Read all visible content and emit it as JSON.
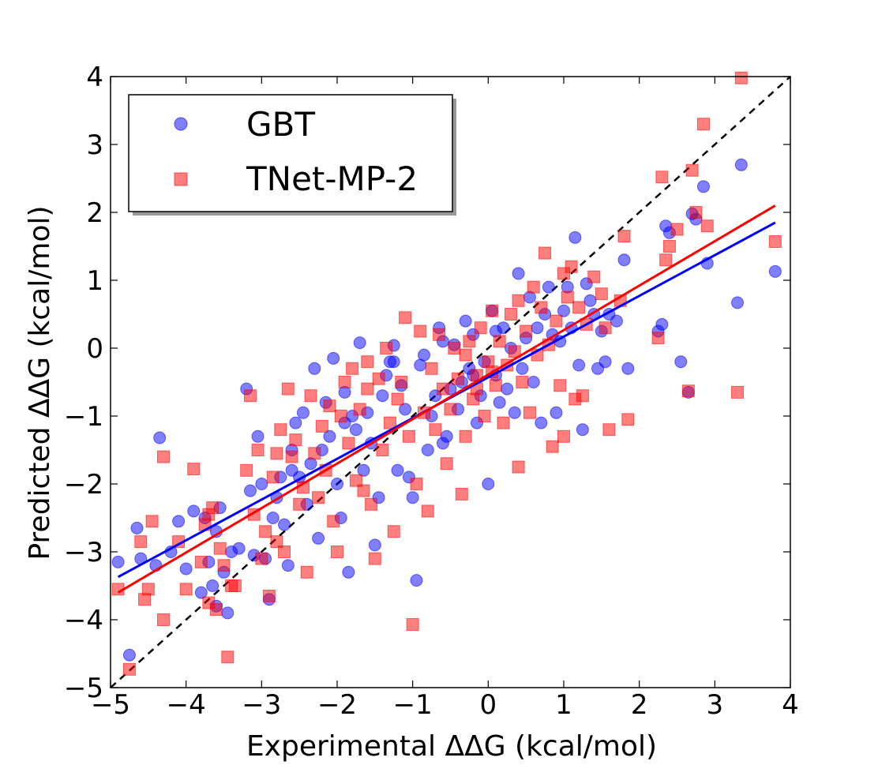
{
  "chart_data": {
    "type": "scatter",
    "title": "",
    "xlabel": "Experimental ΔΔG (kcal/mol)",
    "ylabel": "Predicted ΔΔG (kcal/mol)",
    "xlim": [
      -5,
      4
    ],
    "ylim": [
      -5,
      4
    ],
    "xticks": [
      -5,
      -4,
      -3,
      -2,
      -1,
      0,
      1,
      2,
      3,
      4
    ],
    "yticks": [
      -5,
      -4,
      -3,
      -2,
      -1,
      0,
      1,
      2,
      3,
      4
    ],
    "xtick_labels": [
      "−5",
      "−4",
      "−3",
      "−2",
      "−1",
      "0",
      "1",
      "2",
      "3",
      "4"
    ],
    "ytick_labels": [
      "−5",
      "−4",
      "−3",
      "−2",
      "−1",
      "0",
      "1",
      "2",
      "3",
      "4"
    ],
    "legend_position": "top-left",
    "reference_line": {
      "style": "dashed",
      "color": "#000000",
      "from": [
        -5,
        -5
      ],
      "to": [
        4,
        4
      ]
    },
    "series": [
      {
        "name": "GBT",
        "marker": "circle",
        "color": "#0000ff",
        "alpha": 0.5,
        "fit_line": {
          "from": [
            -4.9,
            -3.37
          ],
          "to": [
            3.8,
            1.85
          ]
        },
        "points": [
          [
            -4.9,
            -3.15
          ],
          [
            -4.75,
            -4.52
          ],
          [
            -4.65,
            -2.65
          ],
          [
            -4.6,
            -3.1
          ],
          [
            -4.4,
            -3.2
          ],
          [
            -4.35,
            -1.32
          ],
          [
            -4.2,
            -3.0
          ],
          [
            -4.1,
            -2.55
          ],
          [
            -4.0,
            -3.25
          ],
          [
            -3.9,
            -2.4
          ],
          [
            -3.8,
            -3.6
          ],
          [
            -3.75,
            -2.5
          ],
          [
            -3.7,
            -3.15
          ],
          [
            -3.65,
            -3.5
          ],
          [
            -3.6,
            -3.8
          ],
          [
            -3.55,
            -2.35
          ],
          [
            -3.5,
            -3.3
          ],
          [
            -3.45,
            -3.9
          ],
          [
            -3.4,
            -3.0
          ],
          [
            -3.3,
            -2.95
          ],
          [
            -3.2,
            -0.6
          ],
          [
            -3.15,
            -2.1
          ],
          [
            -3.1,
            -3.05
          ],
          [
            -3.05,
            -1.3
          ],
          [
            -3.0,
            -2.0
          ],
          [
            -2.95,
            -3.1
          ],
          [
            -2.9,
            -3.7
          ],
          [
            -2.85,
            -2.5
          ],
          [
            -2.8,
            -2.2
          ],
          [
            -2.75,
            -1.9
          ],
          [
            -2.7,
            -2.6
          ],
          [
            -2.65,
            -3.2
          ],
          [
            -2.6,
            -1.5
          ],
          [
            -2.55,
            -1.1
          ],
          [
            -2.5,
            -1.9
          ],
          [
            -2.45,
            -0.95
          ],
          [
            -2.4,
            -2.3
          ],
          [
            -2.35,
            -1.7
          ],
          [
            -2.3,
            -0.3
          ],
          [
            -2.25,
            -2.8
          ],
          [
            -2.2,
            -1.5
          ],
          [
            -2.15,
            -0.8
          ],
          [
            -2.1,
            -1.3
          ],
          [
            -2.05,
            -0.15
          ],
          [
            -2.0,
            -2.0
          ],
          [
            -1.95,
            -2.5
          ],
          [
            -1.9,
            -0.65
          ],
          [
            -1.85,
            -3.3
          ],
          [
            -1.8,
            -1.0
          ],
          [
            -1.75,
            -1.2
          ],
          [
            -1.7,
            0.08
          ],
          [
            -1.65,
            -1.8
          ],
          [
            -1.6,
            -0.95
          ],
          [
            -1.55,
            -1.4
          ],
          [
            -1.5,
            -2.9
          ],
          [
            -1.45,
            -2.2
          ],
          [
            -1.4,
            -0.7
          ],
          [
            -1.35,
            -0.4
          ],
          [
            -1.3,
            -0.2
          ],
          [
            -1.25,
            0.04
          ],
          [
            -1.2,
            -1.8
          ],
          [
            -1.15,
            -0.55
          ],
          [
            -1.1,
            -0.9
          ],
          [
            -1.05,
            -1.9
          ],
          [
            -1.0,
            -2.2
          ],
          [
            -0.95,
            -3.42
          ],
          [
            -0.9,
            -0.25
          ],
          [
            -0.85,
            -0.1
          ],
          [
            -0.8,
            -1.5
          ],
          [
            -0.75,
            -1.0
          ],
          [
            -0.7,
            -0.7
          ],
          [
            -0.65,
            0.3
          ],
          [
            -0.6,
            0.1
          ],
          [
            -0.55,
            -1.3
          ],
          [
            -0.5,
            -0.6
          ],
          [
            -0.45,
            0.05
          ],
          [
            -0.4,
            -0.9
          ],
          [
            -0.35,
            -0.5
          ],
          [
            -0.3,
            0.4
          ],
          [
            -0.25,
            -0.3
          ],
          [
            -0.2,
            0.2
          ],
          [
            -0.15,
            -1.1
          ],
          [
            -0.1,
            -0.7
          ],
          [
            -0.05,
            -0.2
          ],
          [
            0.0,
            -2.0
          ],
          [
            0.05,
            0.55
          ],
          [
            0.1,
            -0.4
          ],
          [
            0.15,
            -0.8
          ],
          [
            0.2,
            0.3
          ],
          [
            0.25,
            -0.6
          ],
          [
            0.3,
            0.0
          ],
          [
            0.35,
            -0.95
          ],
          [
            0.4,
            1.1
          ],
          [
            0.45,
            -0.3
          ],
          [
            0.5,
            0.15
          ],
          [
            0.55,
            0.75
          ],
          [
            0.6,
            -0.5
          ],
          [
            0.65,
            0.3
          ],
          [
            0.7,
            -1.1
          ],
          [
            0.75,
            0.5
          ],
          [
            0.8,
            0.9
          ],
          [
            0.85,
            0.2
          ],
          [
            0.9,
            -0.95
          ],
          [
            0.95,
            0.1
          ],
          [
            1.0,
            0.55
          ],
          [
            1.05,
            0.9
          ],
          [
            1.1,
            0.3
          ],
          [
            1.15,
            1.63
          ],
          [
            1.2,
            -0.25
          ],
          [
            1.25,
            -1.2
          ],
          [
            1.3,
            0.95
          ],
          [
            1.35,
            0.7
          ],
          [
            1.4,
            0.5
          ],
          [
            1.45,
            -0.3
          ],
          [
            1.5,
            0.25
          ],
          [
            1.55,
            -0.2
          ],
          [
            1.6,
            0.5
          ],
          [
            1.7,
            0.4
          ],
          [
            1.8,
            1.3
          ],
          [
            1.85,
            -0.3
          ],
          [
            2.25,
            0.25
          ],
          [
            2.3,
            0.35
          ],
          [
            2.35,
            1.8
          ],
          [
            2.4,
            1.7
          ],
          [
            2.55,
            -0.2
          ],
          [
            2.65,
            -0.65
          ],
          [
            2.7,
            1.98
          ],
          [
            2.75,
            1.9
          ],
          [
            2.85,
            2.38
          ],
          [
            2.9,
            1.25
          ],
          [
            3.3,
            0.67
          ],
          [
            3.35,
            2.7
          ],
          [
            3.8,
            1.13
          ],
          [
            -1.25,
            -0.2
          ],
          [
            -0.6,
            -1.4
          ],
          [
            -0.2,
            -0.4
          ],
          [
            0.1,
            0.25
          ],
          [
            -1.9,
            -1.1
          ],
          [
            -2.6,
            -1.8
          ],
          [
            -3.6,
            -2.7
          ]
        ]
      },
      {
        "name": "TNet-MP-2",
        "marker": "square",
        "color": "#ff0000",
        "alpha": 0.5,
        "fit_line": {
          "from": [
            -4.9,
            -3.6
          ],
          "to": [
            3.8,
            2.1
          ]
        },
        "points": [
          [
            -4.9,
            -3.55
          ],
          [
            -4.75,
            -4.73
          ],
          [
            -4.6,
            -2.85
          ],
          [
            -4.55,
            -3.7
          ],
          [
            -4.5,
            -3.55
          ],
          [
            -4.45,
            -2.55
          ],
          [
            -4.3,
            -4.0
          ],
          [
            -4.3,
            -1.6
          ],
          [
            -4.1,
            -2.85
          ],
          [
            -4.0,
            -3.55
          ],
          [
            -3.9,
            -1.78
          ],
          [
            -3.8,
            -3.15
          ],
          [
            -3.75,
            -2.6
          ],
          [
            -3.7,
            -3.75
          ],
          [
            -3.65,
            -2.35
          ],
          [
            -3.6,
            -3.85
          ],
          [
            -3.55,
            -2.95
          ],
          [
            -3.5,
            -3.2
          ],
          [
            -3.45,
            -4.55
          ],
          [
            -3.4,
            -3.5
          ],
          [
            -3.35,
            -3.5
          ],
          [
            -3.2,
            -1.8
          ],
          [
            -3.15,
            -0.7
          ],
          [
            -3.1,
            -2.45
          ],
          [
            -3.05,
            -1.5
          ],
          [
            -3.0,
            -3.1
          ],
          [
            -2.95,
            -2.7
          ],
          [
            -2.9,
            -3.65
          ],
          [
            -2.85,
            -1.9
          ],
          [
            -2.8,
            -2.85
          ],
          [
            -2.75,
            -1.2
          ],
          [
            -2.7,
            -3.0
          ],
          [
            -2.65,
            -0.6
          ],
          [
            -2.6,
            -1.6
          ],
          [
            -2.55,
            -1.35
          ],
          [
            -2.5,
            -2.3
          ],
          [
            -2.45,
            -2.05
          ],
          [
            -2.4,
            -3.3
          ],
          [
            -2.35,
            -0.7
          ],
          [
            -2.3,
            -1.55
          ],
          [
            -2.25,
            -2.2
          ],
          [
            -2.2,
            -1.15
          ],
          [
            -2.15,
            -1.8
          ],
          [
            -2.1,
            -0.85
          ],
          [
            -2.05,
            -2.55
          ],
          [
            -2.0,
            -3.0
          ],
          [
            -1.95,
            -1.0
          ],
          [
            -1.9,
            -0.5
          ],
          [
            -1.85,
            -1.4
          ],
          [
            -1.8,
            -0.3
          ],
          [
            -1.75,
            -1.95
          ],
          [
            -1.7,
            -0.9
          ],
          [
            -1.65,
            -2.1
          ],
          [
            -1.6,
            -0.6
          ],
          [
            -1.55,
            -2.3
          ],
          [
            -1.5,
            -3.1
          ],
          [
            -1.45,
            -0.45
          ],
          [
            -1.4,
            -1.5
          ],
          [
            -1.35,
            0.0
          ],
          [
            -1.3,
            -1.1
          ],
          [
            -1.25,
            -2.7
          ],
          [
            -1.2,
            -0.75
          ],
          [
            -1.15,
            -0.5
          ],
          [
            -1.1,
            0.45
          ],
          [
            -1.05,
            -1.3
          ],
          [
            -1.0,
            -4.07
          ],
          [
            -0.95,
            -2.0
          ],
          [
            -0.9,
            0.25
          ],
          [
            -0.85,
            -0.95
          ],
          [
            -0.8,
            -2.4
          ],
          [
            -0.75,
            -0.3
          ],
          [
            -0.7,
            -1.2
          ],
          [
            -0.65,
            0.2
          ],
          [
            -0.6,
            -0.6
          ],
          [
            -0.55,
            -1.7
          ],
          [
            -0.5,
            -0.9
          ],
          [
            -0.45,
            0.0
          ],
          [
            -0.4,
            -0.45
          ],
          [
            -0.35,
            -2.15
          ],
          [
            -0.3,
            -1.3
          ],
          [
            -0.25,
            0.1
          ],
          [
            -0.2,
            -0.75
          ],
          [
            -0.15,
            -0.4
          ],
          [
            -0.1,
            0.3
          ],
          [
            -0.05,
            -1.0
          ],
          [
            0.0,
            -0.2
          ],
          [
            0.05,
            0.55
          ],
          [
            0.1,
            -0.55
          ],
          [
            0.15,
            0.1
          ],
          [
            0.2,
            -1.1
          ],
          [
            0.25,
            -0.25
          ],
          [
            0.3,
            0.5
          ],
          [
            0.35,
            -0.05
          ],
          [
            0.4,
            0.7
          ],
          [
            0.45,
            -0.5
          ],
          [
            0.5,
            0.25
          ],
          [
            0.55,
            -0.95
          ],
          [
            0.6,
            0.9
          ],
          [
            0.65,
            -0.1
          ],
          [
            0.7,
            0.6
          ],
          [
            0.75,
            1.4
          ],
          [
            0.8,
            0.05
          ],
          [
            0.85,
            -1.45
          ],
          [
            0.9,
            0.4
          ],
          [
            0.95,
            -0.55
          ],
          [
            1.0,
            1.1
          ],
          [
            1.05,
            0.75
          ],
          [
            1.1,
            1.2
          ],
          [
            1.15,
            -0.75
          ],
          [
            1.2,
            0.6
          ],
          [
            1.25,
            -0.7
          ],
          [
            1.3,
            0.35
          ],
          [
            1.4,
            1.05
          ],
          [
            1.5,
            0.8
          ],
          [
            1.55,
            0.3
          ],
          [
            1.6,
            -1.2
          ],
          [
            1.75,
            0.7
          ],
          [
            1.8,
            1.65
          ],
          [
            1.85,
            -1.05
          ],
          [
            2.25,
            0.15
          ],
          [
            2.3,
            2.52
          ],
          [
            2.35,
            1.3
          ],
          [
            2.4,
            1.5
          ],
          [
            2.5,
            1.75
          ],
          [
            2.65,
            -0.63
          ],
          [
            2.7,
            2.62
          ],
          [
            2.75,
            2.0
          ],
          [
            2.85,
            3.3
          ],
          [
            2.9,
            1.8
          ],
          [
            3.3,
            -0.65
          ],
          [
            3.35,
            3.98
          ],
          [
            3.8,
            1.57
          ],
          [
            -0.3,
            -0.1
          ],
          [
            -0.15,
            -0.6
          ],
          [
            0.05,
            -0.35
          ],
          [
            -1.6,
            -0.2
          ],
          [
            -2.8,
            -1.55
          ],
          [
            -3.7,
            -2.45
          ],
          [
            0.4,
            -1.75
          ],
          [
            1.0,
            -1.3
          ]
        ]
      }
    ]
  }
}
